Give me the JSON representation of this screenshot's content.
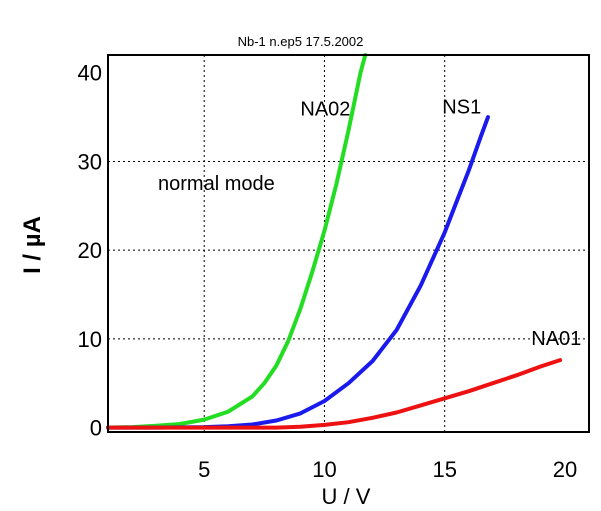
{
  "chart_data": {
    "type": "line",
    "title": "Nb-1 n.ep5 17.5.2002",
    "xlabel": "U / V",
    "ylabel": "I / µA",
    "xlim": [
      1,
      21
    ],
    "ylim": [
      -0.5,
      42
    ],
    "x_ticks": [
      5,
      10,
      15,
      20
    ],
    "y_ticks": [
      0,
      10,
      20,
      30,
      40
    ],
    "grid_x": [
      5,
      10,
      15
    ],
    "grid_y": [
      10,
      20,
      30
    ],
    "grid": "dotted",
    "annotation": "normal mode",
    "series": [
      {
        "name": "NA02",
        "color": "#22dd22",
        "x": [
          1,
          2,
          3,
          4,
          5,
          6,
          7,
          7.5,
          8,
          8.5,
          9,
          9.5,
          10,
          10.5,
          11,
          11.5,
          11.7
        ],
        "y": [
          0,
          0.05,
          0.2,
          0.4,
          0.9,
          1.8,
          3.5,
          5,
          7,
          9.8,
          13.4,
          17.6,
          22.2,
          27.5,
          33.5,
          40,
          42
        ]
      },
      {
        "name": "NS1",
        "color": "#1a1aee",
        "x": [
          1,
          3,
          5,
          6,
          7,
          8,
          9,
          10,
          11,
          12,
          13,
          14,
          15,
          15.5,
          16,
          16.5,
          16.8
        ],
        "y": [
          0,
          0,
          0.05,
          0.15,
          0.35,
          0.8,
          1.6,
          3,
          5,
          7.5,
          11,
          16,
          22,
          25.5,
          29,
          32.8,
          35
        ]
      },
      {
        "name": "NA01",
        "color": "#ee1111",
        "x": [
          1,
          5,
          8,
          9,
          10,
          11,
          12,
          13,
          14,
          15,
          16,
          17,
          18,
          19,
          19.8
        ],
        "y": [
          0,
          0,
          0,
          0.1,
          0.3,
          0.6,
          1.1,
          1.7,
          2.5,
          3.3,
          4.1,
          5,
          5.9,
          6.9,
          7.6
        ]
      }
    ],
    "labels": [
      {
        "text": "NA02",
        "x": 9.0,
        "y": 35.2
      },
      {
        "text": "NS1",
        "x": 14.9,
        "y": 35.4
      },
      {
        "text": "NA01",
        "x": 18.6,
        "y": 9.3
      }
    ]
  }
}
